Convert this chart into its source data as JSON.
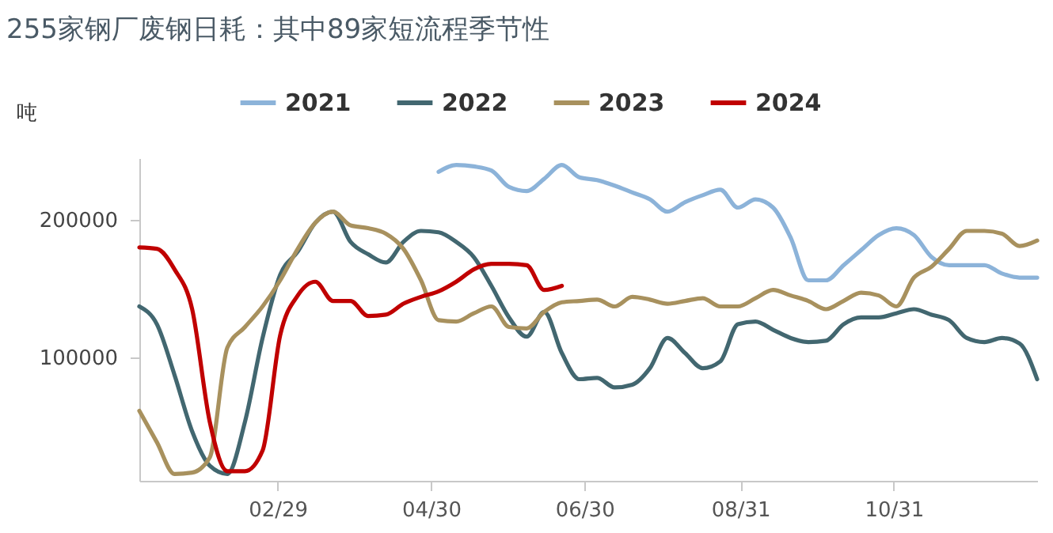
{
  "chart_data": {
    "type": "line",
    "title": "255家钢厂废钢日耗：其中89家短流程季节性",
    "ylabel": "吨",
    "xlim": [
      "--01-05",
      "--12-27"
    ],
    "xticks": [
      {
        "value": "--02-29",
        "label": "02/29"
      },
      {
        "value": "--04-30",
        "label": "04/30"
      },
      {
        "value": "--06-30",
        "label": "06/30"
      },
      {
        "value": "--08-31",
        "label": "08/31"
      },
      {
        "value": "--10-31",
        "label": "10/31"
      }
    ],
    "ylim": [
      10000,
      245000
    ],
    "yticks": [
      100000,
      200000
    ],
    "grid": false,
    "legend": "top",
    "marker": "none",
    "line_style": "solid",
    "series": [
      {
        "name": "2021",
        "color": "#8cb3d9",
        "x": [
          "--05-03",
          "--05-10",
          "--05-17",
          "--05-24",
          "--05-31",
          "--06-07",
          "--06-14",
          "--06-21",
          "--06-28",
          "--07-05",
          "--07-12",
          "--07-19",
          "--07-26",
          "--08-02",
          "--08-09",
          "--08-16",
          "--08-23",
          "--08-30",
          "--09-06",
          "--09-13",
          "--09-20",
          "--09-27",
          "--10-04",
          "--10-11",
          "--10-18",
          "--10-25",
          "--11-01",
          "--11-08",
          "--11-15",
          "--11-22",
          "--11-29",
          "--12-06",
          "--12-13",
          "--12-20",
          "--12-27"
        ],
        "values": [
          235000,
          240000,
          239000,
          236000,
          224000,
          221000,
          230000,
          240000,
          231000,
          229000,
          225000,
          220000,
          215000,
          206000,
          213000,
          218000,
          222000,
          209000,
          215000,
          209000,
          187000,
          156000,
          156000,
          167000,
          178000,
          189000,
          194000,
          189000,
          173000,
          167000,
          167000,
          167000,
          161000,
          158000,
          158000
        ]
      },
      {
        "name": "2022",
        "color": "#426770",
        "x": [
          "--01-05",
          "--01-12",
          "--01-19",
          "--01-26",
          "--02-02",
          "--02-09",
          "--02-16",
          "--02-23",
          "--03-01",
          "--03-08",
          "--03-15",
          "--03-22",
          "--03-29",
          "--04-05",
          "--04-12",
          "--04-19",
          "--04-26",
          "--05-03",
          "--05-10",
          "--05-17",
          "--05-24",
          "--05-31",
          "--06-07",
          "--06-14",
          "--06-21",
          "--06-28",
          "--07-05",
          "--07-12",
          "--07-19",
          "--07-26",
          "--08-02",
          "--08-09",
          "--08-16",
          "--08-23",
          "--08-30",
          "--09-06",
          "--09-13",
          "--09-20",
          "--09-27",
          "--10-04",
          "--10-11",
          "--10-18",
          "--10-25",
          "--11-01",
          "--11-08",
          "--11-15",
          "--11-22",
          "--11-29",
          "--12-06",
          "--12-13",
          "--12-20",
          "--12-27"
        ],
        "values": [
          137000,
          124000,
          87000,
          46000,
          21000,
          15000,
          53000,
          114000,
          160000,
          177000,
          198000,
          206000,
          184000,
          175000,
          169000,
          184000,
          192000,
          191000,
          184000,
          173000,
          152000,
          129000,
          115000,
          133000,
          103000,
          84000,
          85000,
          78000,
          80000,
          92000,
          114000,
          103000,
          92000,
          97000,
          124000,
          126000,
          120000,
          114000,
          111000,
          112000,
          124000,
          129000,
          129000,
          132000,
          135000,
          131000,
          127000,
          114000,
          111000,
          114000,
          110000,
          84000
        ]
      },
      {
        "name": "2023",
        "color": "#a8915e",
        "x": [
          "--01-05",
          "--01-12",
          "--01-19",
          "--01-26",
          "--02-02",
          "--02-09",
          "--02-16",
          "--02-23",
          "--03-01",
          "--03-08",
          "--03-15",
          "--03-22",
          "--03-29",
          "--04-05",
          "--04-12",
          "--04-19",
          "--04-26",
          "--05-03",
          "--05-10",
          "--05-17",
          "--05-24",
          "--05-31",
          "--06-07",
          "--06-14",
          "--06-21",
          "--06-28",
          "--07-05",
          "--07-12",
          "--07-19",
          "--07-26",
          "--08-02",
          "--08-09",
          "--08-16",
          "--08-23",
          "--08-30",
          "--09-06",
          "--09-13",
          "--09-20",
          "--09-27",
          "--10-04",
          "--10-11",
          "--10-18",
          "--10-25",
          "--11-01",
          "--11-08",
          "--11-15",
          "--11-22",
          "--11-29",
          "--12-06",
          "--12-13",
          "--12-20",
          "--12-27"
        ],
        "values": [
          61000,
          38000,
          15000,
          16000,
          27000,
          107000,
          122000,
          137000,
          156000,
          179000,
          198000,
          206000,
          196000,
          194000,
          190000,
          179000,
          156000,
          127000,
          126000,
          132000,
          137000,
          122000,
          121000,
          133000,
          140000,
          141000,
          142000,
          137000,
          144000,
          142000,
          139000,
          141000,
          143000,
          137000,
          137000,
          143000,
          149000,
          145000,
          141000,
          135000,
          141000,
          147000,
          145000,
          137000,
          158000,
          166000,
          179000,
          192000,
          192000,
          190000,
          181000,
          185000
        ]
      },
      {
        "name": "2024",
        "color": "#c00000",
        "x": [
          "--01-05",
          "--01-12",
          "--01-19",
          "--01-26",
          "--02-02",
          "--02-09",
          "--02-16",
          "--02-23",
          "--03-01",
          "--03-08",
          "--03-15",
          "--03-22",
          "--03-29",
          "--04-05",
          "--04-12",
          "--04-19",
          "--04-26",
          "--05-03",
          "--05-10",
          "--05-17",
          "--05-24",
          "--05-31",
          "--06-07",
          "--06-14",
          "--06-21"
        ],
        "values": [
          180000,
          179000,
          164000,
          135000,
          53000,
          17000,
          17000,
          32000,
          116000,
          145000,
          155000,
          141000,
          141000,
          130000,
          131000,
          139000,
          144000,
          148000,
          155000,
          164000,
          168000,
          168000,
          167000,
          149000,
          152000
        ]
      }
    ]
  }
}
